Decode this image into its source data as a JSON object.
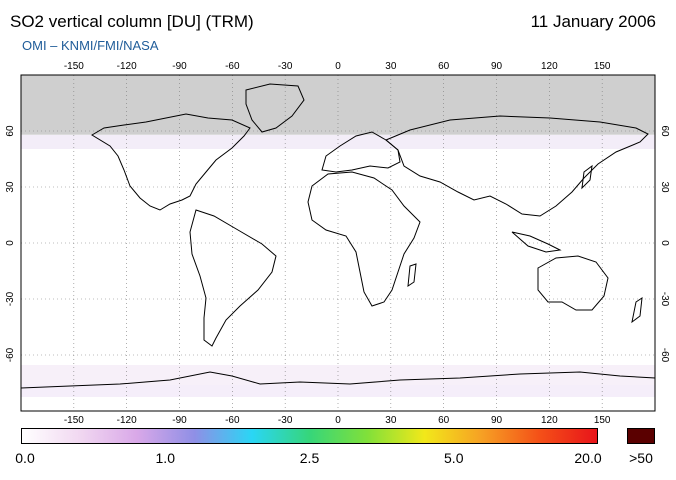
{
  "header": {
    "title": "SO2 vertical column [DU] (TRM)",
    "date": "11 January 2006",
    "credit": "OMI  –  KNMI/FMI/NASA"
  },
  "map": {
    "projection": "equirectangular",
    "lon_range": [
      -180,
      180
    ],
    "lat_range": [
      -90,
      90
    ],
    "lon_ticks": [
      "-150",
      "-120",
      "-90",
      "-60",
      "-30",
      "0",
      "30",
      "60",
      "90",
      "120",
      "150"
    ],
    "lat_ticks": [
      "60",
      "30",
      "0",
      "-30",
      "-60"
    ],
    "no_data_above_lat": 58,
    "colors": {
      "no_data": "#cfcfcf",
      "land_outline": "#000000",
      "grid": "#7a7a7a"
    }
  },
  "colorbar": {
    "labels": [
      "0.0",
      "1.0",
      "2.5",
      "5.0",
      "20.0"
    ],
    "overflow_label": ">50",
    "overflow_color": "#5a0000",
    "gradient_colors": [
      "#ffffff",
      "#f1d8f1",
      "#d9a8e8",
      "#8f8fe6",
      "#2ad6f5",
      "#36d67a",
      "#80e03a",
      "#f2e81a",
      "#f6a024",
      "#f45018",
      "#e8141a"
    ]
  }
}
